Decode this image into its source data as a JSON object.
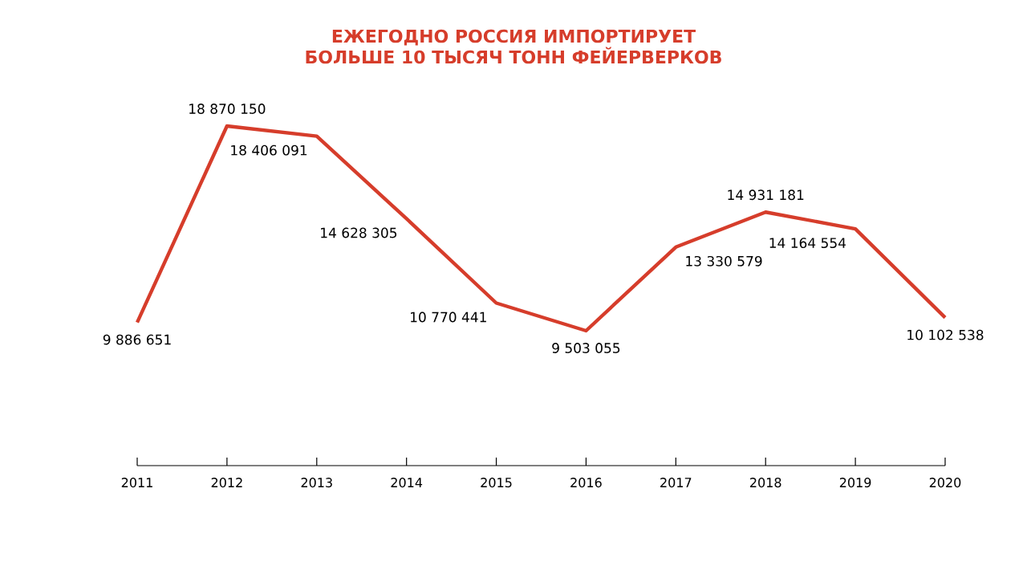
{
  "chart_data": {
    "type": "line",
    "title": "ЕЖЕГОДНО РОССИЯ ИМПОРТИРУЕТ\nБОЛЬШЕ 10 ТЫСЯЧ ТОНН ФЕЙЕРВЕРКОВ",
    "categories": [
      "2011",
      "2012",
      "2013",
      "2014",
      "2015",
      "2016",
      "2017",
      "2018",
      "2019",
      "2020"
    ],
    "values": [
      9886651,
      18870150,
      18406091,
      14628305,
      10770441,
      9503055,
      13330579,
      14931181,
      14164554,
      10102538
    ],
    "value_labels": [
      "9 886 651",
      "18 870 150",
      "18 406 091",
      "14 628 305",
      "10 770 441",
      "9 503 055",
      "13 330 579",
      "14 931 181",
      "14 164 554",
      "10 102 538"
    ],
    "color": "#d63d2b",
    "marker": "none",
    "line_style": "solid",
    "grid": false,
    "tick_labels": "x"
  }
}
